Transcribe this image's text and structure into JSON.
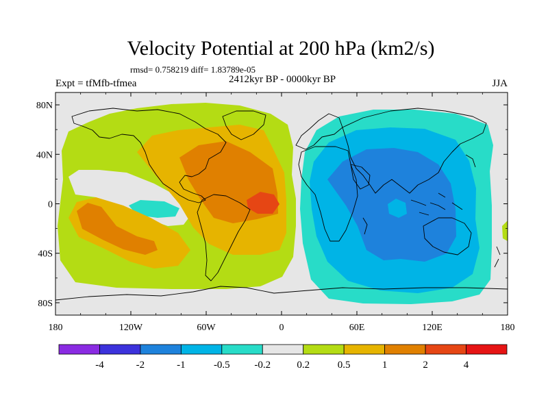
{
  "title": "Velocity Potential at 200 hPa (km2/s)",
  "stats": "rmsd= 0.758219 diff= 1.83789e-05",
  "experiment": "Expt = tfMfb-tfmea",
  "period": "2412kyr BP - 0000kyr BP",
  "season": "JJA",
  "map": {
    "projection": "cylindrical-equidistant",
    "lon_range": [
      -180,
      180
    ],
    "lat_range": [
      -90,
      90
    ],
    "x_ticks": [
      {
        "lon": -180,
        "label": "180"
      },
      {
        "lon": -120,
        "label": "120W"
      },
      {
        "lon": -60,
        "label": "60W"
      },
      {
        "lon": 0,
        "label": "0"
      },
      {
        "lon": 60,
        "label": "60E"
      },
      {
        "lon": 120,
        "label": "120E"
      },
      {
        "lon": 180,
        "label": "180"
      }
    ],
    "y_ticks": [
      {
        "lat": 80,
        "label": "80N"
      },
      {
        "lat": 40,
        "label": "40N"
      },
      {
        "lat": 0,
        "label": "0"
      },
      {
        "lat": -40,
        "label": "40S"
      },
      {
        "lat": -80,
        "label": "80S"
      }
    ]
  },
  "colorbar": {
    "colors": [
      "#8a2be2",
      "#3c32dc",
      "#1e82dc",
      "#00b4e6",
      "#28dcc8",
      "#e6e6e6",
      "#b4dc14",
      "#e6b400",
      "#e08000",
      "#e64614",
      "#e61414"
    ],
    "labels": [
      "-4",
      "-2",
      "-1",
      "-0.5",
      "-0.2",
      "0.2",
      "0.5",
      "1",
      "2",
      "4"
    ]
  },
  "colors": {
    "background": "#e6e6e6",
    "lvl_pos1": "#b4dc14",
    "lvl_pos2": "#e6b400",
    "lvl_pos3": "#e08000",
    "lvl_pos4": "#e64614",
    "lvl_neg1": "#28dcc8",
    "lvl_neg2": "#00b4e6",
    "lvl_neg3": "#1e82dc"
  }
}
